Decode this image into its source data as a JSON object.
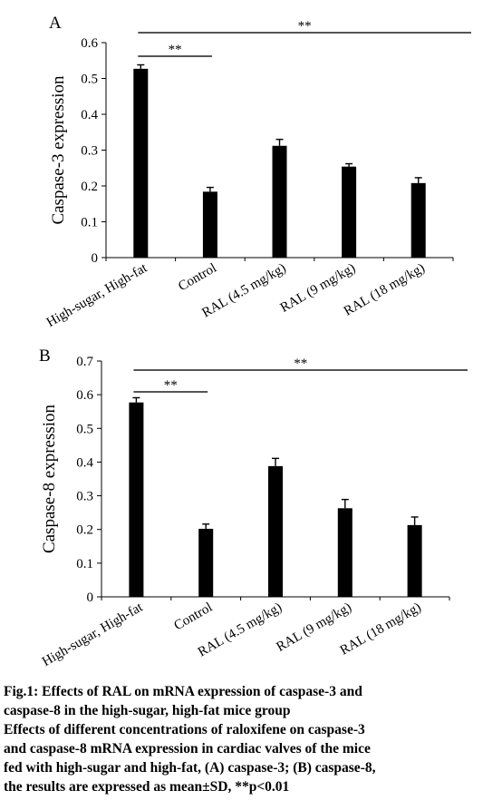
{
  "chart_data": [
    {
      "type": "bar",
      "panel_label": "A",
      "ylabel": "Caspase-3 expression",
      "categories": [
        "High-sugar, High-fat",
        "Control",
        "RAL (4.5 mg/kg)",
        "RAL (9 mg/kg)",
        "RAL (18 mg/kg)"
      ],
      "values": [
        0.527,
        0.184,
        0.312,
        0.254,
        0.208
      ],
      "errors": [
        0.011,
        0.012,
        0.018,
        0.008,
        0.015
      ],
      "ylim": [
        0,
        0.6
      ],
      "yticks": [
        "0",
        "0.1",
        "0.2",
        "0.3",
        "0.4",
        "0.5",
        "0.6"
      ],
      "grid": false,
      "significance": [
        {
          "from": 0,
          "to": 1,
          "label": "**"
        },
        {
          "from": 0,
          "to": 4,
          "label": "**"
        }
      ]
    },
    {
      "type": "bar",
      "panel_label": "B",
      "ylabel": "Caspase-8 expression",
      "categories": [
        "High-sugar, High-fat",
        "Control",
        "RAL (4.5 mg/kg)",
        "RAL (9 mg/kg)",
        "RAL (18 mg/kg)"
      ],
      "values": [
        0.577,
        0.202,
        0.388,
        0.263,
        0.213
      ],
      "errors": [
        0.014,
        0.014,
        0.023,
        0.026,
        0.024
      ],
      "ylim": [
        0,
        0.7
      ],
      "yticks": [
        "0",
        "0.1",
        "0.2",
        "0.3",
        "0.4",
        "0.5",
        "0.6",
        "0.7"
      ],
      "grid": false,
      "significance": [
        {
          "from": 0,
          "to": 1,
          "label": "**"
        },
        {
          "from": 0,
          "to": 4,
          "label": "**"
        }
      ]
    }
  ],
  "caption": {
    "lines": [
      "Fig.1: Effects of RAL on mRNA expression of caspase-3 and",
      "caspase-8 in the high-sugar, high-fat mice group",
      "Effects of different concentrations of raloxifene on caspase-3",
      "and caspase-8 mRNA expression in cardiac valves of the mice",
      "fed with high-sugar and high-fat, (A) caspase-3; (B) caspase-8,",
      "the results are expressed as mean±SD, **p<0.01"
    ]
  },
  "colors": {
    "bar": "#000000",
    "axis": "#000000",
    "bracket": "#555555"
  }
}
